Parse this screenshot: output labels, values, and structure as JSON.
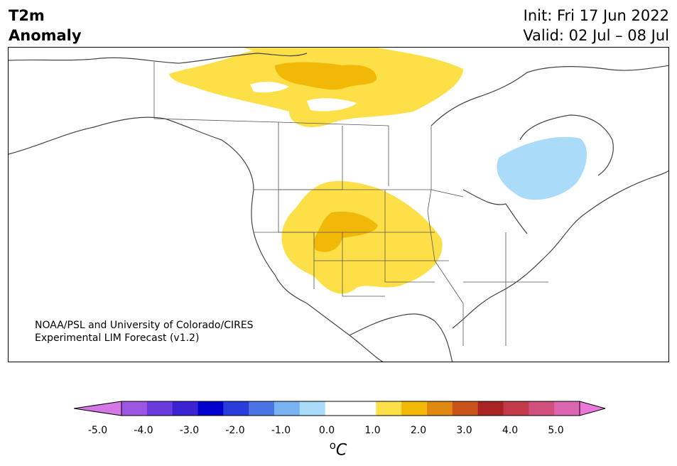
{
  "title": {
    "line1": "T2m",
    "line2": "Anomaly"
  },
  "dates": {
    "init": "Init: Fri 17 Jun 2022",
    "valid": "Valid: 02 Jul – 08 Jul"
  },
  "credit": {
    "line1": "NOAA/PSL and University of Colorado/CIRES",
    "line2": "Experimental LIM Forecast (v1.2)"
  },
  "colorbar": {
    "colors": [
      "#d478e6",
      "#9b55e0",
      "#6a3bdc",
      "#3b22d2",
      "#0000cc",
      "#2a3cda",
      "#4a74e4",
      "#79b2f2",
      "#aadcfa",
      "#ffffff",
      "#ffffff",
      "#fde047",
      "#f2b807",
      "#e08710",
      "#c75318",
      "#ab2424",
      "#c23a4a",
      "#d04f7d",
      "#dd66b0",
      "#ea78d8"
    ],
    "ticks": [
      "-5.0",
      "-4.0",
      "-3.0",
      "-2.0",
      "-1.0",
      "0.0",
      "1.0",
      "2.0",
      "3.0",
      "4.0",
      "5.0"
    ],
    "unit_sup": "o",
    "unit": "C"
  },
  "map_colors": {
    "warm_light": "#fde047",
    "warm_mid": "#f2b807",
    "cool_light": "#aadcfa",
    "lines": "#444444"
  }
}
